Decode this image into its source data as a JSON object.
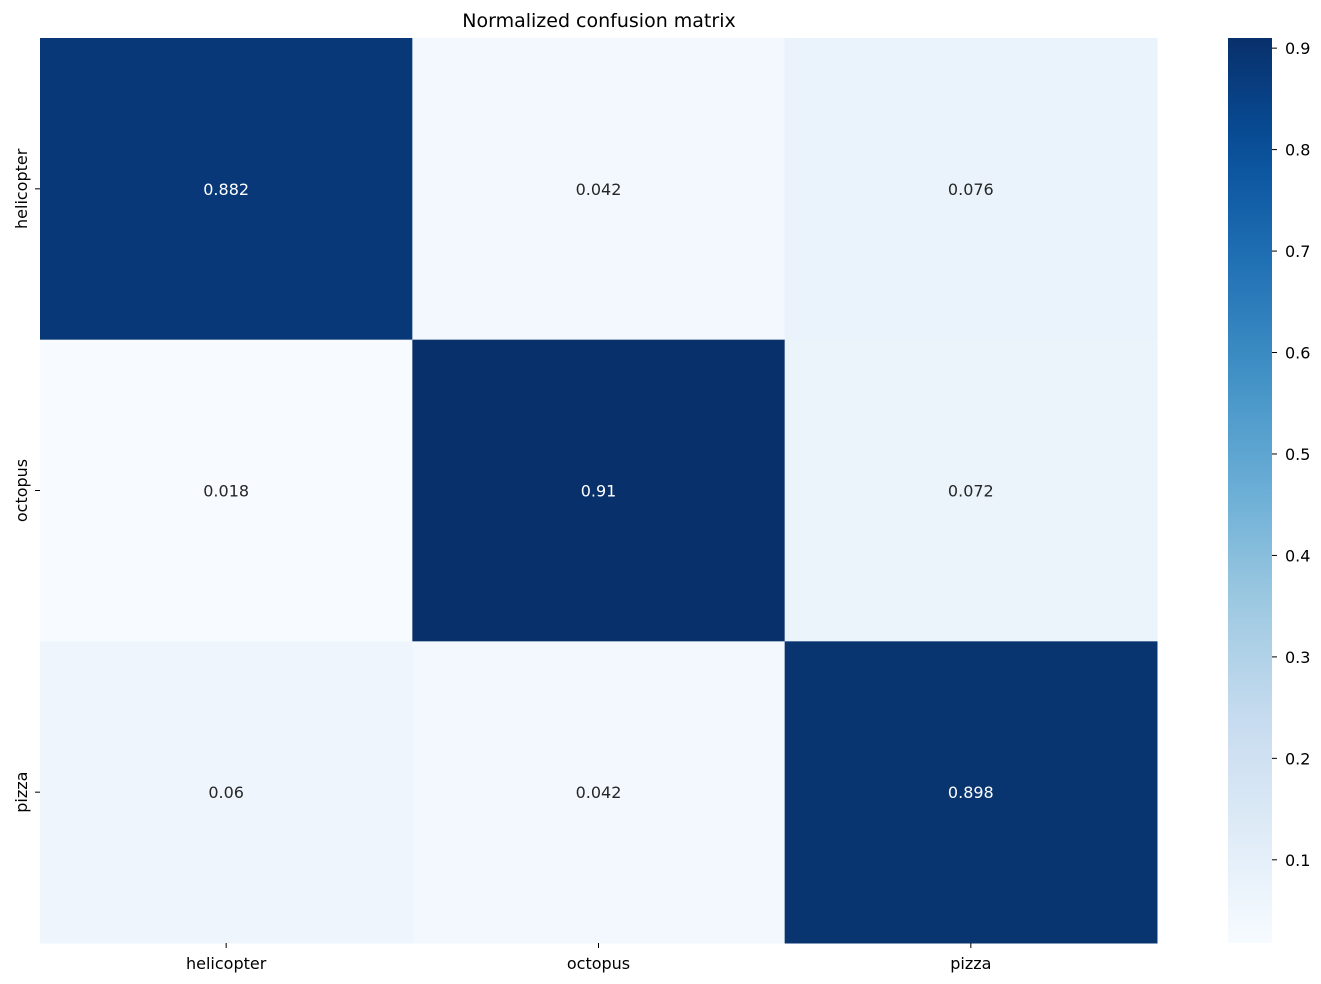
{
  "chart_data": {
    "type": "heatmap",
    "title": "Normalized confusion matrix",
    "xlabel": "",
    "ylabel": "",
    "x_categories": [
      "helicopter",
      "octopus",
      "pizza"
    ],
    "y_categories": [
      "helicopter",
      "octopus",
      "pizza"
    ],
    "values": [
      [
        0.882,
        0.042,
        0.076
      ],
      [
        0.018,
        0.91,
        0.072
      ],
      [
        0.06,
        0.042,
        0.898
      ]
    ],
    "cell_labels": [
      [
        "0.882",
        "0.042",
        "0.076"
      ],
      [
        "0.018",
        "0.91",
        "0.072"
      ],
      [
        "0.06",
        "0.042",
        "0.898"
      ]
    ],
    "colormap": "Blues",
    "colorbar": {
      "range": [
        0.018,
        0.91
      ],
      "ticks": [
        0.1,
        0.2,
        0.3,
        0.4,
        0.5,
        0.6,
        0.7,
        0.8,
        0.9
      ],
      "tick_labels": [
        "0.1",
        "0.2",
        "0.3",
        "0.4",
        "0.5",
        "0.6",
        "0.7",
        "0.8",
        "0.9"
      ]
    },
    "colors": {
      "low": "#f7fbff",
      "high": "#08306b",
      "text_dark": "#262626",
      "text_light": "#ffffff"
    }
  }
}
